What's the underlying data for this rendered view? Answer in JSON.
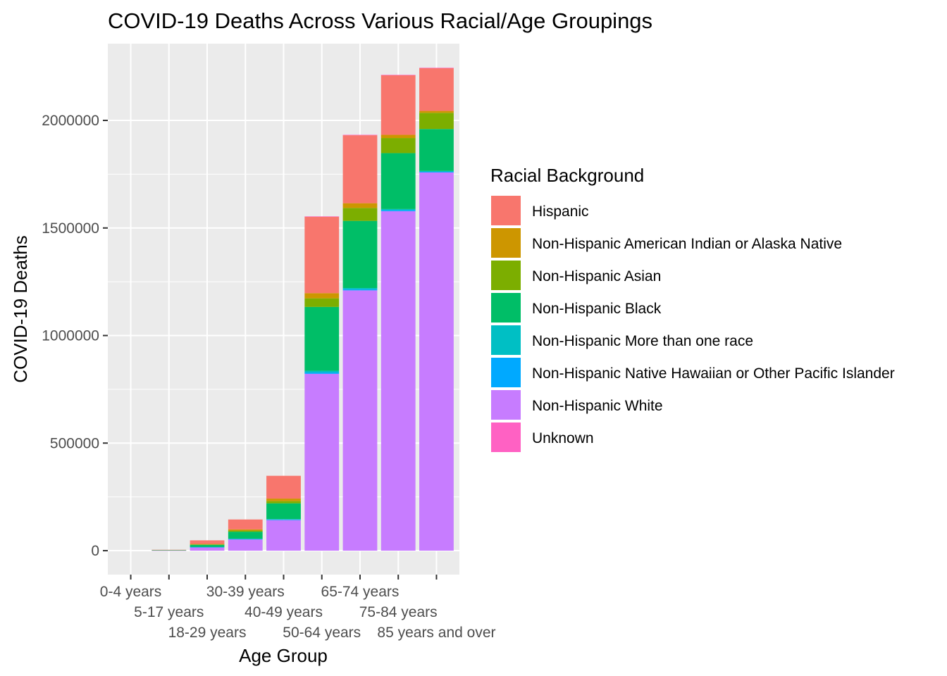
{
  "chart_data": {
    "type": "bar",
    "stacked": true,
    "title": "COVID-19 Deaths Across Various Racial/Age Groupings",
    "xlabel": "Age Group",
    "ylabel": "COVID-19 Deaths",
    "ylim": [
      -110000,
      2330000
    ],
    "yticks": [
      0,
      500000,
      1000000,
      1500000,
      2000000
    ],
    "ytick_labels": [
      "0",
      "500000",
      "1000000",
      "1500000",
      "2000000"
    ],
    "grid": true,
    "legend_position": "right",
    "legend_title": "Racial Background",
    "categories": [
      "0-4 years",
      "5-17 years",
      "18-29 years",
      "30-39 years",
      "40-49 years",
      "50-64 years",
      "65-74 years",
      "75-84 years",
      "85 years and over"
    ],
    "series": [
      {
        "name": "Non-Hispanic White",
        "color": "#C77CFF",
        "values": [
          0,
          1000,
          16000,
          52000,
          142000,
          822000,
          1210000,
          1578000,
          1758000
        ]
      },
      {
        "name": "Non-Hispanic Native Hawaiian or Other Pacific Islander",
        "color": "#00A9FF",
        "values": [
          0,
          0,
          1000,
          2000,
          3000,
          6000,
          5000,
          5000,
          3000
        ]
      },
      {
        "name": "Non-Hispanic More than one race",
        "color": "#00BFC4",
        "values": [
          0,
          0,
          1000,
          2000,
          2000,
          8000,
          6000,
          5000,
          4000
        ]
      },
      {
        "name": "Non-Hispanic Black",
        "color": "#00BE67",
        "values": [
          0,
          1000,
          9000,
          32000,
          73000,
          297000,
          312000,
          260000,
          195000
        ]
      },
      {
        "name": "Non-Hispanic Asian",
        "color": "#7CAE00",
        "values": [
          0,
          0,
          2000,
          5000,
          10000,
          40000,
          60000,
          70000,
          75000
        ]
      },
      {
        "name": "Non-Hispanic American Indian or Alaska Native",
        "color": "#CD9600",
        "values": [
          0,
          0,
          2000,
          6000,
          12000,
          24000,
          22000,
          15000,
          9000
        ]
      },
      {
        "name": "Hispanic",
        "color": "#F8766D",
        "values": [
          0,
          2000,
          17000,
          46000,
          106000,
          355000,
          316000,
          277000,
          199000
        ]
      },
      {
        "name": "Unknown",
        "color": "#FF61C3",
        "values": [
          0,
          0,
          0,
          0,
          0,
          2000,
          2000,
          2000,
          2000
        ]
      }
    ],
    "legend_order": [
      "Hispanic",
      "Non-Hispanic American Indian or Alaska Native",
      "Non-Hispanic Asian",
      "Non-Hispanic Black",
      "Non-Hispanic More than one race",
      "Non-Hispanic Native Hawaiian or Other Pacific Islander",
      "Non-Hispanic White",
      "Unknown"
    ],
    "colors": {
      "panel_background": "#EBEBEB",
      "grid": "#FFFFFF",
      "tick_text": "#4D4D4D"
    }
  }
}
